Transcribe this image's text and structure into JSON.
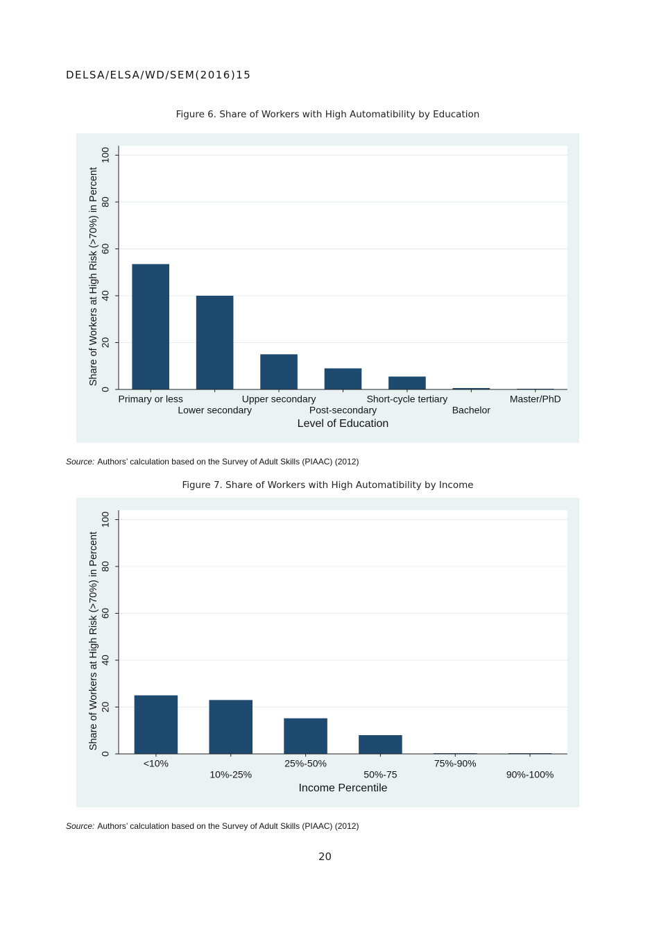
{
  "header": {
    "code": "DELSA/ELSA/WD/SEM(2016)15"
  },
  "chart_data": [
    {
      "type": "bar",
      "title": "Figure 6.   Share of Workers with High Automatibility by Education",
      "x_label": "Level of Education",
      "y_label": "Share of Workers at High Risk (>70%) in Percent",
      "categories": [
        "Primary or less",
        "Lower secondary",
        "Upper secondary",
        "Post-secondary",
        "Short-cycle tertiary",
        "Bachelor",
        "Master/PhD"
      ],
      "values": [
        53.5,
        40,
        15,
        9,
        5.5,
        0.6,
        0.3
      ],
      "color": "#1f4a70",
      "ylim": [
        0,
        104
      ],
      "yticks": [
        0,
        20,
        40,
        60,
        80,
        100
      ],
      "grid": true
    },
    {
      "type": "bar",
      "title": "Figure 7.   Share of Workers with High Automatibility by Income",
      "x_label": "Income Percentile",
      "y_label": "Share of Workers at High Risk (>70%) in Percent",
      "categories": [
        "<10%",
        "10%-25%",
        "25%-50%",
        "50%-75",
        "75%-90%",
        "90%-100%"
      ],
      "values": [
        25,
        23,
        15.2,
        8,
        0.3,
        0.3
      ],
      "color": "#1f4a70",
      "ylim": [
        0,
        104
      ],
      "yticks": [
        0,
        20,
        40,
        60,
        80,
        100
      ],
      "grid": true
    }
  ],
  "sources": [
    {
      "label": "Source:",
      "text": "Authors’ calculation based on the Survey of Adult Skills (PIAAC) (2012)"
    },
    {
      "label": "Source:",
      "text": "Authors’ calculation based on the Survey of Adult Skills (PIAAC) (2012)"
    }
  ],
  "footer": {
    "page_number": "20"
  }
}
